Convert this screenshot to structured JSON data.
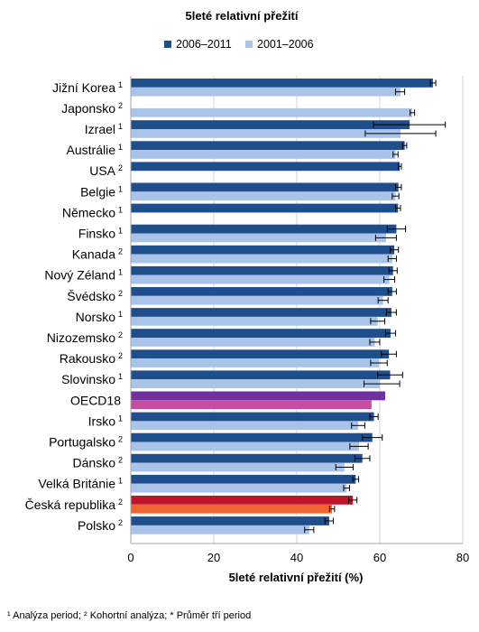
{
  "chart_data": {
    "type": "bar",
    "orientation": "horizontal",
    "title": "5leté relativní přežití",
    "xlabel": "5leté relativní přežití (%)",
    "ylabel": "",
    "xlim": [
      0,
      80
    ],
    "xticks": [
      "0",
      "20",
      "40",
      "60",
      "80"
    ],
    "grid": true,
    "legend_position": "top",
    "series": [
      {
        "name": "2006–2011",
        "color": "#1f4e8c"
      },
      {
        "name": "2001–2006",
        "color": "#a9c4e8"
      }
    ],
    "categories": [
      {
        "label": "Jižní Korea",
        "sup": "1",
        "v1": 72.8,
        "e1": [
          72.2,
          73.5
        ],
        "v2": 65.0,
        "e2": [
          63.8,
          66.0
        ]
      },
      {
        "label": "Japonsko",
        "sup": "2",
        "v1": null,
        "e1": null,
        "v2": 67.8,
        "e2": [
          67.3,
          68.4
        ]
      },
      {
        "label": "Izrael",
        "sup": "1",
        "v1": 67.2,
        "e1": [
          58.5,
          75.8
        ],
        "v2": 65.0,
        "e2": [
          56.5,
          73.5
        ]
      },
      {
        "label": "Austrálie",
        "sup": "1",
        "v1": 66.0,
        "e1": [
          65.5,
          66.5
        ],
        "v2": 63.8,
        "e2": [
          63.2,
          64.4
        ]
      },
      {
        "label": "USA",
        "sup": "2",
        "v1": 64.8,
        "e1": [
          64.5,
          65.2
        ],
        "v2": null,
        "e2": null
      },
      {
        "label": "Belgie",
        "sup": "1",
        "v1": 64.5,
        "e1": [
          63.8,
          65.2
        ],
        "v2": 63.8,
        "e2": [
          63.0,
          64.6
        ]
      },
      {
        "label": "Německo",
        "sup": "1",
        "v1": 64.4,
        "e1": [
          63.8,
          65.0
        ],
        "v2": null,
        "e2": null
      },
      {
        "label": "Finsko",
        "sup": "1",
        "v1": 64.0,
        "e1": [
          61.8,
          66.2
        ],
        "v2": 61.5,
        "e2": [
          59.0,
          64.0
        ]
      },
      {
        "label": "Kanada",
        "sup": "2",
        "v1": 63.5,
        "e1": [
          62.5,
          64.5
        ],
        "v2": 63.0,
        "e2": [
          62.0,
          64.0
        ]
      },
      {
        "label": "Nový Zéland",
        "sup": "1",
        "v1": 63.2,
        "e1": [
          62.2,
          64.2
        ],
        "v2": 62.3,
        "e2": [
          61.0,
          63.6
        ]
      },
      {
        "label": "Švédsko",
        "sup": "2",
        "v1": 63.0,
        "e1": [
          62.0,
          64.0
        ],
        "v2": 60.8,
        "e2": [
          59.6,
          62.0
        ]
      },
      {
        "label": "Norsko",
        "sup": "1",
        "v1": 62.8,
        "e1": [
          61.6,
          64.0
        ],
        "v2": 59.5,
        "e2": [
          57.8,
          61.2
        ]
      },
      {
        "label": "Nizozemsko",
        "sup": "2",
        "v1": 62.6,
        "e1": [
          61.4,
          63.8
        ],
        "v2": 58.8,
        "e2": [
          57.6,
          60.0
        ]
      },
      {
        "label": "Rakousko",
        "sup": "2",
        "v1": 62.2,
        "e1": [
          60.4,
          64.0
        ],
        "v2": 59.8,
        "e2": [
          57.8,
          61.8
        ]
      },
      {
        "label": "Slovinsko",
        "sup": "1",
        "v1": 62.5,
        "e1": [
          59.5,
          65.5
        ],
        "v2": 60.0,
        "e2": [
          56.2,
          64.8
        ]
      },
      {
        "label": "OECD18",
        "sup": "",
        "v1": 61.3,
        "e1": null,
        "v2": 58.0,
        "e2": null
      },
      {
        "label": "Irsko",
        "sup": "1",
        "v1": 58.6,
        "e1": [
          57.6,
          59.6
        ],
        "v2": 54.8,
        "e2": [
          53.2,
          56.4
        ]
      },
      {
        "label": "Portugalsko",
        "sup": "2",
        "v1": 58.2,
        "e1": [
          55.8,
          60.6
        ],
        "v2": 55.0,
        "e2": [
          52.8,
          57.2
        ]
      },
      {
        "label": "Dánsko",
        "sup": "2",
        "v1": 55.8,
        "e1": [
          54.0,
          57.6
        ],
        "v2": 51.5,
        "e2": [
          49.4,
          53.6
        ]
      },
      {
        "label": "Velká Británie",
        "sup": "1",
        "v1": 54.2,
        "e1": [
          53.5,
          54.9
        ],
        "v2": 52.0,
        "e2": [
          51.3,
          52.7
        ]
      },
      {
        "label": "Česká republika",
        "sup": "2",
        "v1": 53.5,
        "e1": [
          52.5,
          54.5
        ],
        "v2": 48.5,
        "e2": [
          47.9,
          49.1
        ]
      },
      {
        "label": "Polsko",
        "sup": "2",
        "v1": 47.8,
        "e1": [
          46.8,
          48.8
        ],
        "v2": 43.0,
        "e2": [
          41.9,
          44.1
        ]
      }
    ],
    "highlight_colors": {
      "OECD18": [
        "#7030a0",
        "#c44fa0"
      ],
      "Česká republika": [
        "#c0142a",
        "#f26430"
      ]
    }
  },
  "footnote": "¹ Analýza period; ² Kohortní analýza; * Průměr tří period"
}
